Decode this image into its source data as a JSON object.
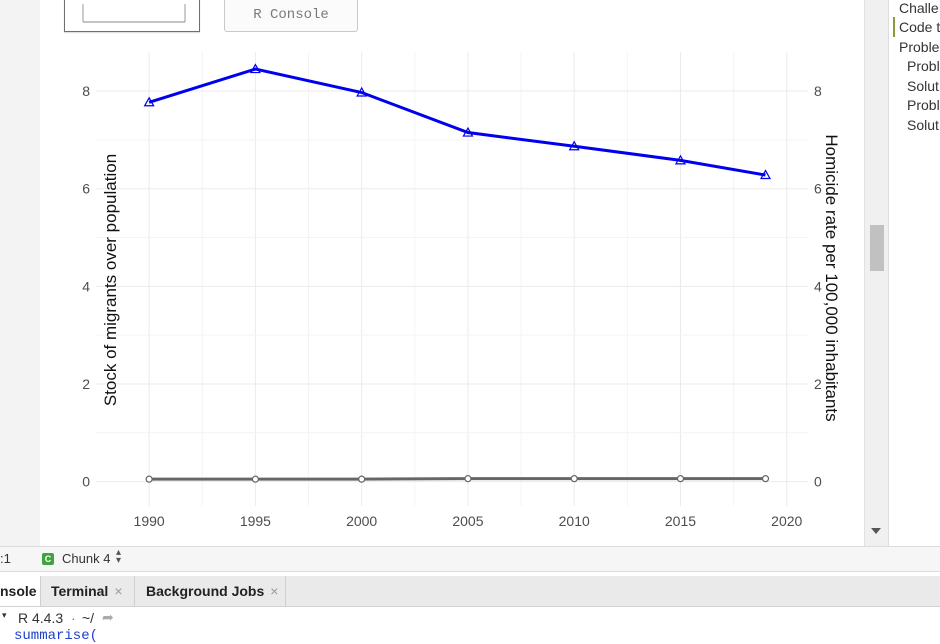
{
  "toolbar": {
    "r_console_label": "R Console"
  },
  "chart_data": {
    "type": "line",
    "x": [
      1990,
      1995,
      2000,
      2005,
      2010,
      2015,
      2019
    ],
    "series": [
      {
        "values": [
          7.77,
          8.45,
          7.97,
          7.15,
          6.87,
          6.58,
          6.28
        ],
        "color": "#0000ee",
        "marker": "triangle",
        "axis": "right"
      },
      {
        "values": [
          0.05,
          0.05,
          0.05,
          0.06,
          0.06,
          0.06,
          0.06
        ],
        "color": "#666666",
        "marker": "circle",
        "axis": "left"
      }
    ],
    "xlim": [
      1987.5,
      2021
    ],
    "ylim": [
      -0.5,
      8.8
    ],
    "x_ticks": [
      1990,
      1995,
      2000,
      2005,
      2010,
      2015,
      2020
    ],
    "y_ticks": [
      0,
      2,
      4,
      6,
      8
    ],
    "ylabel_left": "Stock of migrants over population",
    "ylabel_right": "Homicide rate per 100,000 inhabitants",
    "grid": true
  },
  "outline": {
    "items": [
      "Challe",
      "Code t",
      "Proble",
      "Probl",
      "Solut",
      "Probl",
      "Solut"
    ]
  },
  "status": {
    "position": ":1",
    "chunk_badge": "C",
    "chunk_label": "Chunk 4"
  },
  "panel_tabs": [
    {
      "label": "nsole"
    },
    {
      "label": "Terminal"
    },
    {
      "label": "Background Jobs"
    }
  ],
  "console": {
    "r_version": "R 4.4.3",
    "path": "~/",
    "last_line": "summarise("
  }
}
